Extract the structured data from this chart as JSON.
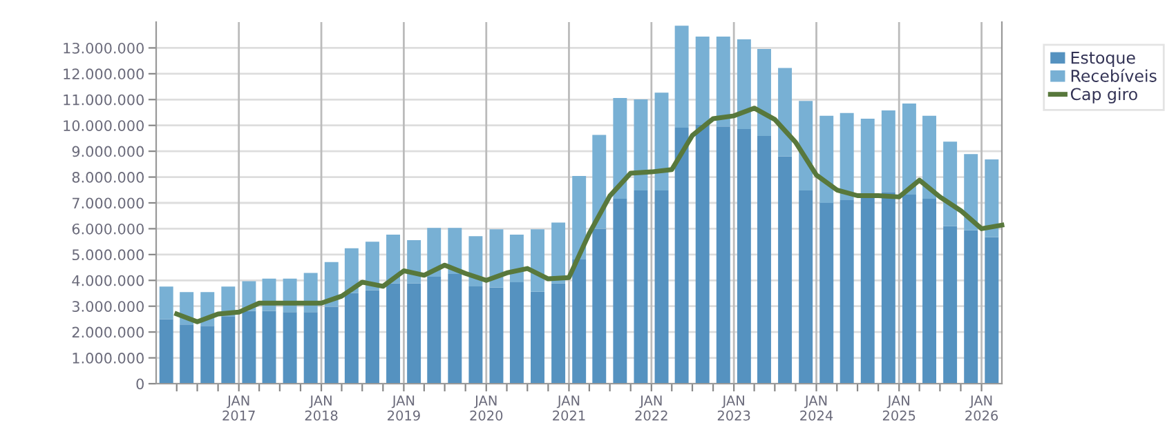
{
  "chart_data": {
    "type": "bar",
    "stacked": true,
    "x": [
      "2016-02-15",
      "2016-05-15",
      "2016-08-15",
      "2016-11-15",
      "2017-02-15",
      "2017-05-15",
      "2017-08-15",
      "2017-11-15",
      "2018-02-15",
      "2018-05-15",
      "2018-08-15",
      "2018-11-15",
      "2019-02-15",
      "2019-05-15",
      "2019-08-15",
      "2019-11-15",
      "2020-02-15",
      "2020-05-15",
      "2020-08-15",
      "2020-11-15",
      "2021-02-15",
      "2021-05-15",
      "2021-08-15",
      "2021-11-15",
      "2022-02-15",
      "2022-05-15",
      "2022-08-15",
      "2022-11-15",
      "2023-02-15",
      "2023-05-15",
      "2023-08-15",
      "2023-11-15",
      "2024-02-15",
      "2024-05-15",
      "2024-08-15",
      "2024-11-15",
      "2025-02-15",
      "2025-05-15",
      "2025-08-15",
      "2025-11-15",
      "2026-02-15"
    ],
    "series": [
      {
        "name": "Estoque",
        "color": "#5592c0",
        "values": [
          2500000,
          2290000,
          2240000,
          2610000,
          2820000,
          2820000,
          2770000,
          2770000,
          2980000,
          3510000,
          3620000,
          3880000,
          3880000,
          4140000,
          4250000,
          3770000,
          3720000,
          3930000,
          3560000,
          3880000,
          4810000,
          6000000,
          7160000,
          7480000,
          7480000,
          9910000,
          10020000,
          9960000,
          9860000,
          9590000,
          8800000,
          7480000,
          7000000,
          7110000,
          7210000,
          7420000,
          7320000,
          7160000,
          6100000,
          5940000,
          5680000
        ]
      },
      {
        "name": "Recebíveis",
        "color": "#78b0d4",
        "values": [
          1260000,
          1260000,
          1310000,
          1150000,
          1150000,
          1250000,
          1300000,
          1520000,
          1730000,
          1730000,
          1880000,
          1890000,
          1680000,
          1890000,
          1780000,
          1940000,
          2260000,
          1840000,
          2420000,
          2360000,
          3230000,
          3630000,
          3900000,
          3530000,
          3790000,
          3950000,
          3420000,
          3480000,
          3470000,
          3370000,
          3420000,
          3470000,
          3370000,
          3370000,
          3050000,
          3160000,
          3530000,
          3210000,
          3270000,
          2950000,
          3000000
        ]
      },
      {
        "name": "Cap giro",
        "type": "line",
        "color": "#58783c",
        "x": [
          "2016-04-01",
          "2016-07-01",
          "2016-10-01",
          "2017-01-01",
          "2017-04-01",
          "2017-07-01",
          "2017-10-01",
          "2018-01-01",
          "2018-04-01",
          "2018-07-01",
          "2018-10-01",
          "2019-01-01",
          "2019-04-01",
          "2019-07-01",
          "2019-10-01",
          "2020-01-01",
          "2020-04-01",
          "2020-07-01",
          "2020-10-01",
          "2021-01-01",
          "2021-04-01",
          "2021-07-01",
          "2021-10-01",
          "2022-01-01",
          "2022-04-01",
          "2022-07-01",
          "2022-10-01",
          "2023-01-01",
          "2023-04-01",
          "2023-07-01",
          "2023-10-01",
          "2024-01-01",
          "2024-04-01",
          "2024-07-01",
          "2024-10-01",
          "2025-01-01",
          "2025-04-01",
          "2025-07-01",
          "2025-10-01",
          "2026-01-01",
          "2026-04-01"
        ],
        "values": [
          2700000,
          2400000,
          2700000,
          2770000,
          3120000,
          3120000,
          3120000,
          3120000,
          3390000,
          3930000,
          3770000,
          4370000,
          4200000,
          4590000,
          4270000,
          4000000,
          4290000,
          4460000,
          4060000,
          4110000,
          5820000,
          7270000,
          8150000,
          8200000,
          8290000,
          9610000,
          10260000,
          10370000,
          10670000,
          10230000,
          9350000,
          8080000,
          7500000,
          7280000,
          7280000,
          7230000,
          7880000,
          7230000,
          6700000,
          6000000,
          6140000
        ]
      }
    ],
    "xlim": [
      "2016-01-01",
      "2026-04-01"
    ],
    "xticks": [
      {
        "value": "2016-04-01",
        "label": null
      },
      {
        "value": "2016-07-01",
        "label": null
      },
      {
        "value": "2016-10-01",
        "label": null
      },
      {
        "value": "2017-01-01",
        "label": "JAN\n2017"
      },
      {
        "value": "2017-04-01",
        "label": null
      },
      {
        "value": "2017-07-01",
        "label": null
      },
      {
        "value": "2017-10-01",
        "label": null
      },
      {
        "value": "2018-01-01",
        "label": "JAN\n2018"
      },
      {
        "value": "2018-04-01",
        "label": null
      },
      {
        "value": "2018-07-01",
        "label": null
      },
      {
        "value": "2018-10-01",
        "label": null
      },
      {
        "value": "2019-01-01",
        "label": "JAN\n2019"
      },
      {
        "value": "2019-04-01",
        "label": null
      },
      {
        "value": "2019-07-01",
        "label": null
      },
      {
        "value": "2019-10-01",
        "label": null
      },
      {
        "value": "2020-01-01",
        "label": "JAN\n2020"
      },
      {
        "value": "2020-04-01",
        "label": null
      },
      {
        "value": "2020-07-01",
        "label": null
      },
      {
        "value": "2020-10-01",
        "label": null
      },
      {
        "value": "2021-01-01",
        "label": "JAN\n2021"
      },
      {
        "value": "2021-04-01",
        "label": null
      },
      {
        "value": "2021-07-01",
        "label": null
      },
      {
        "value": "2021-10-01",
        "label": null
      },
      {
        "value": "2022-01-01",
        "label": "JAN\n2022"
      },
      {
        "value": "2022-04-01",
        "label": null
      },
      {
        "value": "2022-07-01",
        "label": null
      },
      {
        "value": "2022-10-01",
        "label": null
      },
      {
        "value": "2023-01-01",
        "label": "JAN\n2023"
      },
      {
        "value": "2023-04-01",
        "label": null
      },
      {
        "value": "2023-07-01",
        "label": null
      },
      {
        "value": "2023-10-01",
        "label": null
      },
      {
        "value": "2024-01-01",
        "label": "JAN\n2024"
      },
      {
        "value": "2024-04-01",
        "label": null
      },
      {
        "value": "2024-07-01",
        "label": null
      },
      {
        "value": "2024-10-01",
        "label": null
      },
      {
        "value": "2025-01-01",
        "label": "JAN\n2025"
      },
      {
        "value": "2025-04-01",
        "label": null
      },
      {
        "value": "2025-07-01",
        "label": null
      },
      {
        "value": "2025-10-01",
        "label": null
      },
      {
        "value": "2026-01-01",
        "label": "JAN\n2026"
      }
    ],
    "ylim": [
      0,
      14000000
    ],
    "yticks": [
      {
        "value": 0,
        "label": "0"
      },
      {
        "value": 1000000,
        "label": "1.000.000"
      },
      {
        "value": 2000000,
        "label": "2.000.000"
      },
      {
        "value": 3000000,
        "label": "3.000.000"
      },
      {
        "value": 4000000,
        "label": "4.000.000"
      },
      {
        "value": 5000000,
        "label": "5.000.000"
      },
      {
        "value": 6000000,
        "label": "6.000.000"
      },
      {
        "value": 7000000,
        "label": "7.000.000"
      },
      {
        "value": 8000000,
        "label": "8.000.000"
      },
      {
        "value": 9000000,
        "label": "9.000.000"
      },
      {
        "value": 10000000,
        "label": "10.000.000"
      },
      {
        "value": 11000000,
        "label": "11.000.000"
      },
      {
        "value": 12000000,
        "label": "12.000.000"
      },
      {
        "value": 13000000,
        "label": "13.000.000"
      }
    ],
    "grid": true,
    "legend": "top right",
    "marker": "none",
    "line_style": "solid"
  }
}
